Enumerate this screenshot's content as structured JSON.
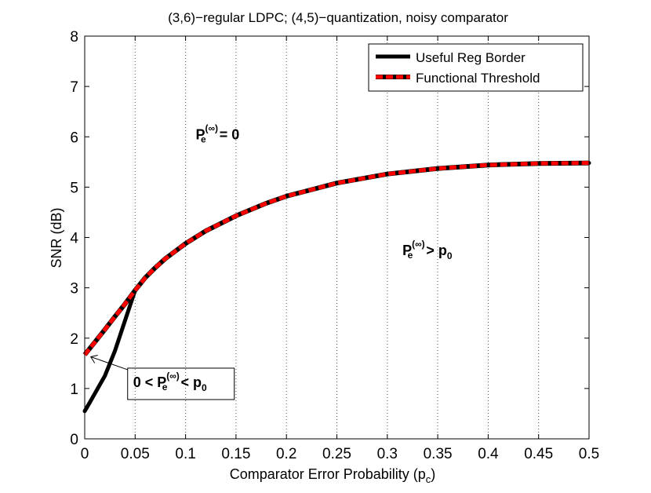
{
  "chart_data": {
    "type": "line",
    "title": "(3,6)−regular LDPC; (4,5)−quantization, noisy comparator",
    "xlabel": "Comparator Error Probability (p",
    "xlabel_sub": "c",
    "xlabel_end": ")",
    "ylabel": "SNR (dB)",
    "xlim": [
      0,
      0.5
    ],
    "ylim": [
      0,
      8
    ],
    "xticks": [
      0,
      0.05,
      0.1,
      0.15,
      0.2,
      0.25,
      0.3,
      0.35,
      0.4,
      0.45,
      0.5
    ],
    "xtick_labels": [
      "0",
      "0.05",
      "0.1",
      "0.15",
      "0.2",
      "0.25",
      "0.3",
      "0.35",
      "0.4",
      "0.45",
      "0.5"
    ],
    "yticks": [
      0,
      1,
      2,
      3,
      4,
      5,
      6,
      7,
      8
    ],
    "ytick_labels": [
      "0",
      "1",
      "2",
      "3",
      "4",
      "5",
      "6",
      "7",
      "8"
    ],
    "grid": "vertical dotted",
    "legend_position": "top-right",
    "series": [
      {
        "name": "Useful Reg Border",
        "color": "#000000",
        "style": "solid",
        "x": [
          0,
          0.005,
          0.01,
          0.02,
          0.03,
          0.04,
          0.05,
          0.06,
          0.07,
          0.08,
          0.1,
          0.12,
          0.15,
          0.18,
          0.2,
          0.25,
          0.3,
          0.35,
          0.4,
          0.45,
          0.5
        ],
        "y": [
          0.55,
          0.72,
          0.9,
          1.25,
          1.75,
          2.35,
          2.95,
          3.2,
          3.4,
          3.58,
          3.88,
          4.13,
          4.43,
          4.68,
          4.82,
          5.08,
          5.26,
          5.37,
          5.44,
          5.47,
          5.48
        ]
      },
      {
        "name": "Functional Threshold",
        "color": "#ff0000",
        "style": "dashed",
        "x": [
          0,
          0.01,
          0.02,
          0.03,
          0.04,
          0.05,
          0.06,
          0.07,
          0.08,
          0.1,
          0.12,
          0.15,
          0.18,
          0.2,
          0.25,
          0.3,
          0.35,
          0.4,
          0.45,
          0.5
        ],
        "y": [
          1.67,
          1.92,
          2.17,
          2.43,
          2.68,
          2.95,
          3.2,
          3.4,
          3.58,
          3.88,
          4.13,
          4.43,
          4.68,
          4.82,
          5.08,
          5.26,
          5.37,
          5.44,
          5.47,
          5.48
        ]
      }
    ],
    "annotations": [
      {
        "id": "upper",
        "text": "P",
        "sub": "e",
        "sup": "(∞)",
        "rest": " = 0",
        "x": 0.11,
        "y": 5.95
      },
      {
        "id": "lower",
        "text": "P",
        "sub": "e",
        "sup": "(∞)",
        "rest": " > p",
        "rest_sub": "0",
        "x": 0.315,
        "y": 3.65
      },
      {
        "id": "boxed",
        "pre": "0 < P",
        "sub": "e",
        "sup": "(∞)",
        "rest": " < p",
        "rest_sub": "0",
        "x": 0.048,
        "y": 1.03,
        "arrow_to": [
          0.006,
          1.63
        ]
      }
    ]
  }
}
